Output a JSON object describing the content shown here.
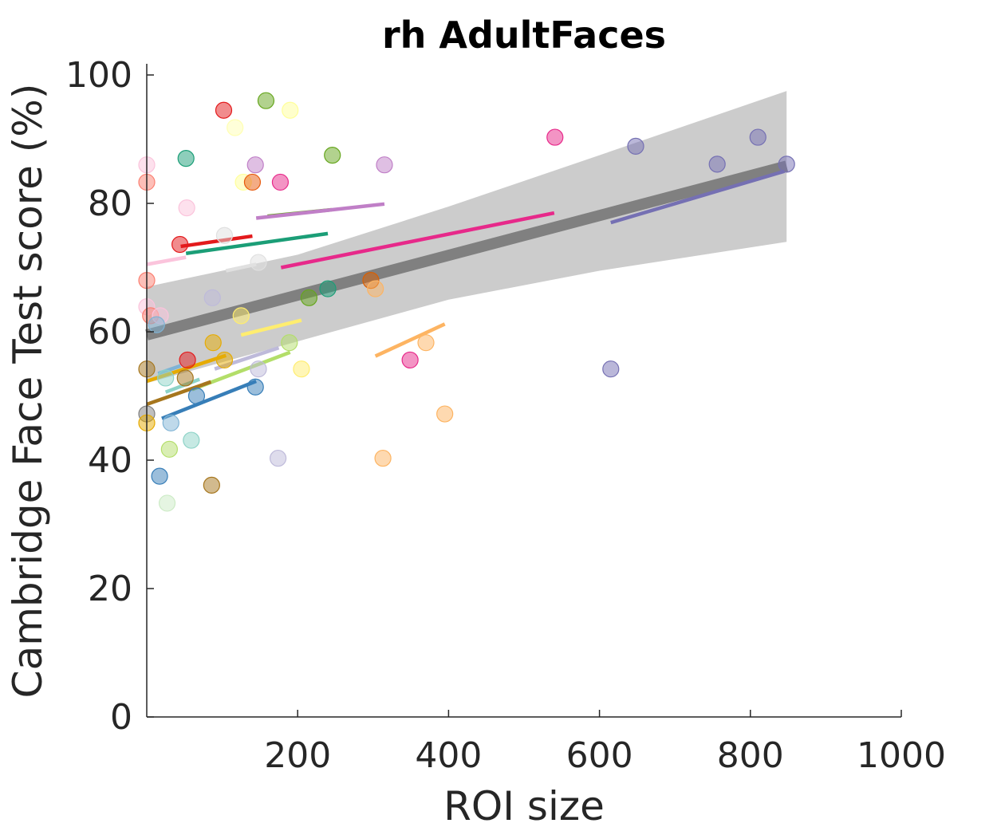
{
  "chart_data": {
    "type": "scatter",
    "title": "rh AdultFaces",
    "xlabel": "ROI size",
    "ylabel": "Cambridge Face Test score (%)",
    "xlim": [
      0,
      1000
    ],
    "ylim": [
      0,
      100
    ],
    "xticks": [
      200,
      400,
      600,
      800,
      1000
    ],
    "yticks": [
      0,
      20,
      40,
      60,
      80,
      100
    ],
    "x_tick_labels": [
      "200",
      "400",
      "600",
      "800",
      "1000"
    ],
    "y_tick_labels": [
      "0",
      "20",
      "40",
      "60",
      "80",
      "100"
    ],
    "grid": false,
    "legend": "none",
    "overall_fit": {
      "x": [
        0,
        848
      ],
      "y": [
        59.5,
        85.8
      ],
      "color": "#808080",
      "ci_upper": [
        [
          0,
          67.0
        ],
        [
          200,
          72.0
        ],
        [
          400,
          79.5
        ],
        [
          600,
          87.5
        ],
        [
          848,
          97.5
        ]
      ],
      "ci_lower": [
        [
          0,
          52.0
        ],
        [
          200,
          58.5
        ],
        [
          400,
          65.0
        ],
        [
          600,
          69.5
        ],
        [
          848,
          74.0
        ]
      ],
      "ci_color": "#cccccc"
    },
    "group_fits": [
      {
        "color": "#e31a1c",
        "x": [
          45,
          140
        ],
        "y": [
          73.3,
          74.9
        ]
      },
      {
        "color": "#1b9e77",
        "x": [
          52,
          240
        ],
        "y": [
          72.2,
          75.3
        ]
      },
      {
        "color": "#66a61e",
        "x": [
          160,
          245
        ],
        "y": [
          78.0,
          79.0
        ]
      },
      {
        "color": "#c07fc7",
        "x": [
          145,
          315
        ],
        "y": [
          77.7,
          79.9
        ]
      },
      {
        "color": "#e7298a",
        "x": [
          178,
          540
        ],
        "y": [
          70.0,
          78.5
        ]
      },
      {
        "color": "#7570b3",
        "x": [
          615,
          845
        ],
        "y": [
          77.0,
          85.0
        ]
      },
      {
        "color": "#fbc4dc",
        "x": [
          0,
          52
        ],
        "y": [
          70.5,
          71.6
        ]
      },
      {
        "color": "#e0e0e0",
        "x": [
          105,
          145
        ],
        "y": [
          69.5,
          70.5
        ]
      },
      {
        "color": "#ffed6f",
        "x": [
          125,
          205
        ],
        "y": [
          59.5,
          61.8
        ]
      },
      {
        "color": "#fdb462",
        "x": [
          303,
          395
        ],
        "y": [
          56.2,
          61.2
        ]
      },
      {
        "color": "#bebada",
        "x": [
          90,
          175
        ],
        "y": [
          54.2,
          57.5
        ]
      },
      {
        "color": "#b3de69",
        "x": [
          60,
          190
        ],
        "y": [
          51.0,
          56.8
        ]
      },
      {
        "color": "#7fb3d5",
        "x": [
          15,
          45
        ],
        "y": [
          53.5,
          54.7
        ]
      },
      {
        "color": "#e6ab02",
        "x": [
          0,
          105
        ],
        "y": [
          52.3,
          56.3
        ]
      },
      {
        "color": "#8dd3c7",
        "x": [
          25,
          70
        ],
        "y": [
          50.6,
          52.6
        ]
      },
      {
        "color": "#a6761d",
        "x": [
          0,
          85
        ],
        "y": [
          48.7,
          52.2
        ]
      },
      {
        "color": "#377eb8",
        "x": [
          20,
          145
        ],
        "y": [
          46.5,
          52.3
        ]
      }
    ],
    "points": [
      {
        "x": 102,
        "y": 94.5,
        "color": "#e31a1c",
        "alpha": 0.5
      },
      {
        "x": 158,
        "y": 96.0,
        "color": "#66a61e",
        "alpha": 0.5
      },
      {
        "x": 190,
        "y": 94.5,
        "color": "#ffff99",
        "alpha": 0.5
      },
      {
        "x": 117,
        "y": 91.8,
        "color": "#ffffb3",
        "alpha": 0.5
      },
      {
        "x": 0,
        "y": 86.0,
        "color": "#fbc4dc",
        "alpha": 0.5
      },
      {
        "x": 52,
        "y": 87.0,
        "color": "#1b9e77",
        "alpha": 0.5
      },
      {
        "x": 144,
        "y": 86.0,
        "color": "#c07fc7",
        "alpha": 0.5
      },
      {
        "x": 246,
        "y": 87.5,
        "color": "#66a61e",
        "alpha": 0.5
      },
      {
        "x": 315,
        "y": 86.0,
        "color": "#c07fc7",
        "alpha": 0.5
      },
      {
        "x": 0,
        "y": 83.3,
        "color": "#fb8072",
        "alpha": 0.5
      },
      {
        "x": 128,
        "y": 83.3,
        "color": "#ffff99",
        "alpha": 0.5
      },
      {
        "x": 140,
        "y": 83.3,
        "color": "#e8590c",
        "alpha": 0.5
      },
      {
        "x": 177,
        "y": 83.3,
        "color": "#e7298a",
        "alpha": 0.5
      },
      {
        "x": 53,
        "y": 79.3,
        "color": "#fbc4dc",
        "alpha": 0.5
      },
      {
        "x": 103,
        "y": 75.0,
        "color": "#e0e0e0",
        "alpha": 0.5
      },
      {
        "x": 44,
        "y": 73.6,
        "color": "#e31a1c",
        "alpha": 0.5
      },
      {
        "x": 148,
        "y": 70.8,
        "color": "#e0e0e0",
        "alpha": 0.5
      },
      {
        "x": 0,
        "y": 68.0,
        "color": "#fb8072",
        "alpha": 0.5
      },
      {
        "x": 297,
        "y": 68.0,
        "color": "#d95f02",
        "alpha": 0.5
      },
      {
        "x": 240,
        "y": 66.7,
        "color": "#1b9e77",
        "alpha": 0.5
      },
      {
        "x": 303,
        "y": 66.7,
        "color": "#fdb462",
        "alpha": 0.5
      },
      {
        "x": 215,
        "y": 65.3,
        "color": "#66a61e",
        "alpha": 0.5
      },
      {
        "x": 87,
        "y": 65.3,
        "color": "#bebada",
        "alpha": 0.5
      },
      {
        "x": 0,
        "y": 63.9,
        "color": "#fbc4dc",
        "alpha": 0.5
      },
      {
        "x": 5,
        "y": 62.5,
        "color": "#fb8072",
        "alpha": 0.5
      },
      {
        "x": 18,
        "y": 62.5,
        "color": "#fbc4dc",
        "alpha": 0.5
      },
      {
        "x": 13,
        "y": 61.1,
        "color": "#7fb3d5",
        "alpha": 0.5
      },
      {
        "x": 125,
        "y": 62.5,
        "color": "#ffed6f",
        "alpha": 0.5
      },
      {
        "x": 88,
        "y": 58.3,
        "color": "#e6ab02",
        "alpha": 0.5
      },
      {
        "x": 189,
        "y": 58.3,
        "color": "#b3de69",
        "alpha": 0.5
      },
      {
        "x": 370,
        "y": 58.3,
        "color": "#fdb462",
        "alpha": 0.5
      },
      {
        "x": 54,
        "y": 55.6,
        "color": "#e31a1c",
        "alpha": 0.5
      },
      {
        "x": 103,
        "y": 55.6,
        "color": "#e6ab02",
        "alpha": 0.5
      },
      {
        "x": 349,
        "y": 55.6,
        "color": "#e7298a",
        "alpha": 0.5
      },
      {
        "x": 0,
        "y": 54.2,
        "color": "#a6761d",
        "alpha": 0.5
      },
      {
        "x": 148,
        "y": 54.2,
        "color": "#bebada",
        "alpha": 0.5
      },
      {
        "x": 205,
        "y": 54.2,
        "color": "#ffed6f",
        "alpha": 0.5
      },
      {
        "x": 615,
        "y": 54.2,
        "color": "#7570b3",
        "alpha": 0.5
      },
      {
        "x": 25,
        "y": 52.8,
        "color": "#8dd3c7",
        "alpha": 0.5
      },
      {
        "x": 51,
        "y": 52.8,
        "color": "#a6761d",
        "alpha": 0.5
      },
      {
        "x": 144,
        "y": 51.4,
        "color": "#377eb8",
        "alpha": 0.5
      },
      {
        "x": 66,
        "y": 50.0,
        "color": "#377eb8",
        "alpha": 0.5
      },
      {
        "x": 0,
        "y": 47.2,
        "color": "#808080",
        "alpha": 0.5
      },
      {
        "x": 395,
        "y": 47.2,
        "color": "#fdb462",
        "alpha": 0.5
      },
      {
        "x": 0,
        "y": 45.8,
        "color": "#e6ab02",
        "alpha": 0.5
      },
      {
        "x": 32,
        "y": 45.8,
        "color": "#7fb3d5",
        "alpha": 0.5
      },
      {
        "x": 59,
        "y": 43.1,
        "color": "#8dd3c7",
        "alpha": 0.5
      },
      {
        "x": 30,
        "y": 41.7,
        "color": "#b3de69",
        "alpha": 0.5
      },
      {
        "x": 174,
        "y": 40.3,
        "color": "#bebada",
        "alpha": 0.5
      },
      {
        "x": 313,
        "y": 40.3,
        "color": "#fdb462",
        "alpha": 0.5
      },
      {
        "x": 17,
        "y": 37.5,
        "color": "#377eb8",
        "alpha": 0.5
      },
      {
        "x": 86,
        "y": 36.1,
        "color": "#a6761d",
        "alpha": 0.5
      },
      {
        "x": 27,
        "y": 33.3,
        "color": "#ccebc5",
        "alpha": 0.5
      },
      {
        "x": 541,
        "y": 90.3,
        "color": "#e7298a",
        "alpha": 0.5
      },
      {
        "x": 648,
        "y": 88.9,
        "color": "#7570b3",
        "alpha": 0.5
      },
      {
        "x": 756,
        "y": 86.1,
        "color": "#7570b3",
        "alpha": 0.5
      },
      {
        "x": 810,
        "y": 90.3,
        "color": "#7570b3",
        "alpha": 0.5
      },
      {
        "x": 848,
        "y": 86.1,
        "color": "#7570b3",
        "alpha": 0.5
      }
    ]
  }
}
